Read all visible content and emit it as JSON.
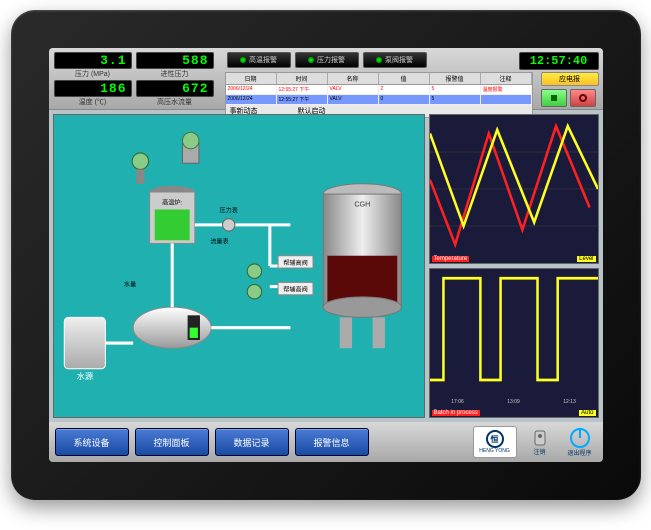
{
  "readouts": [
    {
      "value": "3.1",
      "label": "压力 (MPa)"
    },
    {
      "value": "588",
      "label": "进性压力"
    },
    {
      "value": "186",
      "label": "温度 (℃)"
    },
    {
      "value": "672",
      "label": "高压水流量"
    }
  ],
  "alarms": [
    {
      "label": "高温报警"
    },
    {
      "label": "压力报警"
    },
    {
      "label": "泵阀报警"
    }
  ],
  "clock": "12:57:40",
  "btn_yellow": "应电报",
  "table": {
    "headers": [
      "日期",
      "时间",
      "名称",
      "值",
      "报警值",
      "注释"
    ],
    "rows": [
      [
        "2006/12/24",
        "12:55:27 下午",
        "VALV",
        "2",
        "5",
        "温度报警"
      ],
      [
        "2006/12/24",
        "12:55:27 下午",
        "VALV",
        "0",
        "5",
        ""
      ]
    ]
  },
  "eventbar": {
    "a": "事新动态",
    "b": "默认启动"
  },
  "process_labels": {
    "water_src": "水源",
    "inlet": "水量",
    "tank1": "高温炉:",
    "pressure": "压力表",
    "flow": "流量表",
    "pump1": "帮辅高阀",
    "pump2": "帮辅高阀",
    "vessel": "CGH",
    "motor": "电机动"
  },
  "chart1": {
    "type": "line",
    "series": [
      {
        "name": "Temperature",
        "color": "#ff2020",
        "points": [
          [
            0,
            45
          ],
          [
            15,
            10
          ],
          [
            35,
            70
          ],
          [
            55,
            18
          ],
          [
            75,
            74
          ],
          [
            95,
            30
          ]
        ]
      },
      {
        "name": "Level",
        "color": "#ffff20",
        "points": [
          [
            0,
            70
          ],
          [
            20,
            20
          ],
          [
            40,
            72
          ],
          [
            62,
            22
          ],
          [
            82,
            74
          ],
          [
            100,
            40
          ]
        ]
      }
    ],
    "ylim": [
      0,
      80
    ],
    "bg": "#1a1a3a",
    "grid": "#444"
  },
  "chart2": {
    "type": "line",
    "series": [
      {
        "name": "Batch",
        "color": "#ffff20",
        "points": [
          [
            0,
            20
          ],
          [
            8,
            20
          ],
          [
            8,
            75
          ],
          [
            30,
            75
          ],
          [
            30,
            20
          ],
          [
            42,
            20
          ],
          [
            42,
            75
          ],
          [
            64,
            75
          ],
          [
            64,
            20
          ],
          [
            76,
            20
          ],
          [
            76,
            75
          ],
          [
            100,
            75
          ]
        ]
      }
    ],
    "xlabels": [
      "17:06",
      "13:09",
      "12:13"
    ],
    "footer_left": "Batch in process",
    "footer_right": "Auto",
    "bg": "#1a1a3a"
  },
  "nav": [
    {
      "label": "系统设备"
    },
    {
      "label": "控制面板"
    },
    {
      "label": "数据记录"
    },
    {
      "label": "报警信息"
    }
  ],
  "logo": {
    "text": "恒",
    "sub": "HENG YONG"
  },
  "footer_btns": {
    "logout": "注销",
    "exit": "退出程序"
  },
  "colors": {
    "accent": "#20b0b0",
    "lcd": "#00ff00",
    "navbtn": "#2a5bc4"
  }
}
